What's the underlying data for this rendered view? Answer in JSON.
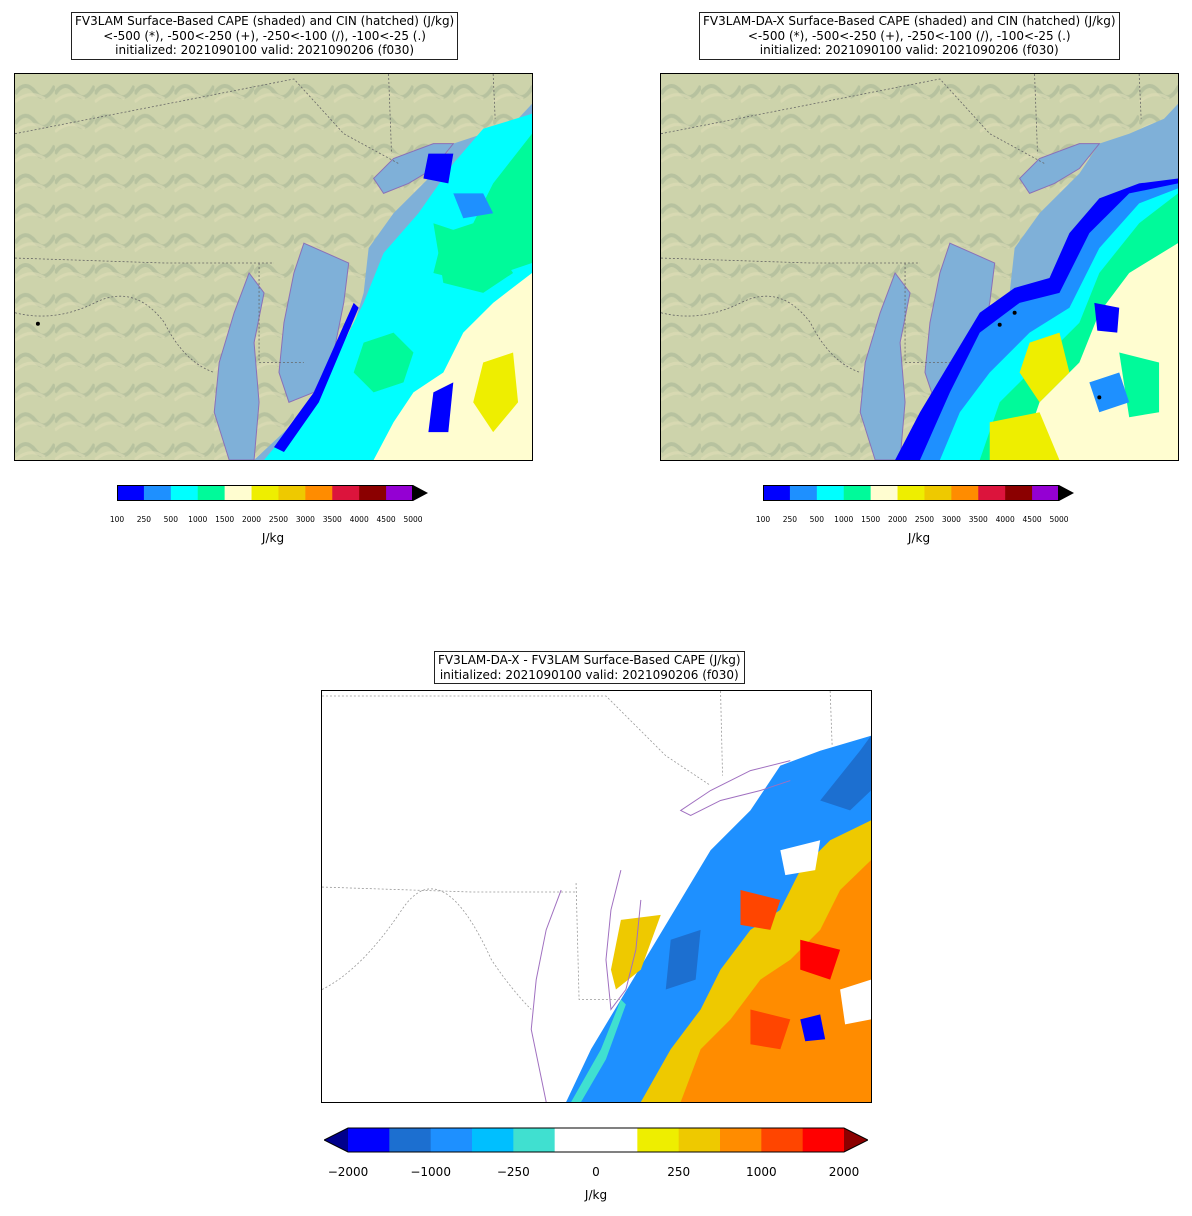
{
  "panels": [
    {
      "title_lines": [
        "FV3LAM Surface-Based CAPE (shaded) and CIN (hatched) (J/kg)",
        "<-500 (*), -500<-250 (+), -250<-100 (/), -100<-25 (.)",
        "initialized: 2021090100 valid: 2021090206 (f030)"
      ]
    },
    {
      "title_lines": [
        "FV3LAM-DA-X Surface-Based CAPE (shaded) and CIN (hatched) (J/kg)",
        "<-500 (*), -500<-250 (+), -250<-100 (/), -100<-25 (.)",
        "initialized: 2021090100 valid: 2021090206 (f030)"
      ]
    },
    {
      "title_lines": [
        "FV3LAM-DA-X - FV3LAM Surface-Based CAPE (J/kg)",
        "initialized: 2021090100 valid: 2021090206 (f030)"
      ]
    }
  ],
  "cape_colorbar": {
    "ticks": [
      "100",
      "250",
      "500",
      "1000",
      "1500",
      "2000",
      "2500",
      "3000",
      "3500",
      "4000",
      "4500",
      "5000"
    ],
    "colors": [
      "#0000ff",
      "#1e90ff",
      "#00ffff",
      "#00fa9a",
      "#fffdd0",
      "#eeee00",
      "#eec900",
      "#ff8c00",
      "#dc143c",
      "#8b0000",
      "#9400d3"
    ],
    "extend_color": "#000000",
    "unit_label": "J/kg"
  },
  "diff_colorbar": {
    "ticks": [
      "−2000",
      "−1000",
      "−250",
      "0",
      "250",
      "1000",
      "2000"
    ],
    "colors": [
      "#0000ff",
      "#1c6fd0",
      "#1e90ff",
      "#00bfff",
      "#40e0d0",
      "#ffffff",
      "#ffffff",
      "#eeee00",
      "#eec900",
      "#ff8c00",
      "#ff4500",
      "#ff0000"
    ],
    "extend_low": "#00008b",
    "extend_high": "#8b0000",
    "unit_label": "J/kg"
  },
  "colors": {
    "terrain": "#c9d1a8",
    "water": "#7fb0d8",
    "coast": "#8a70b8",
    "border": "#666666"
  }
}
